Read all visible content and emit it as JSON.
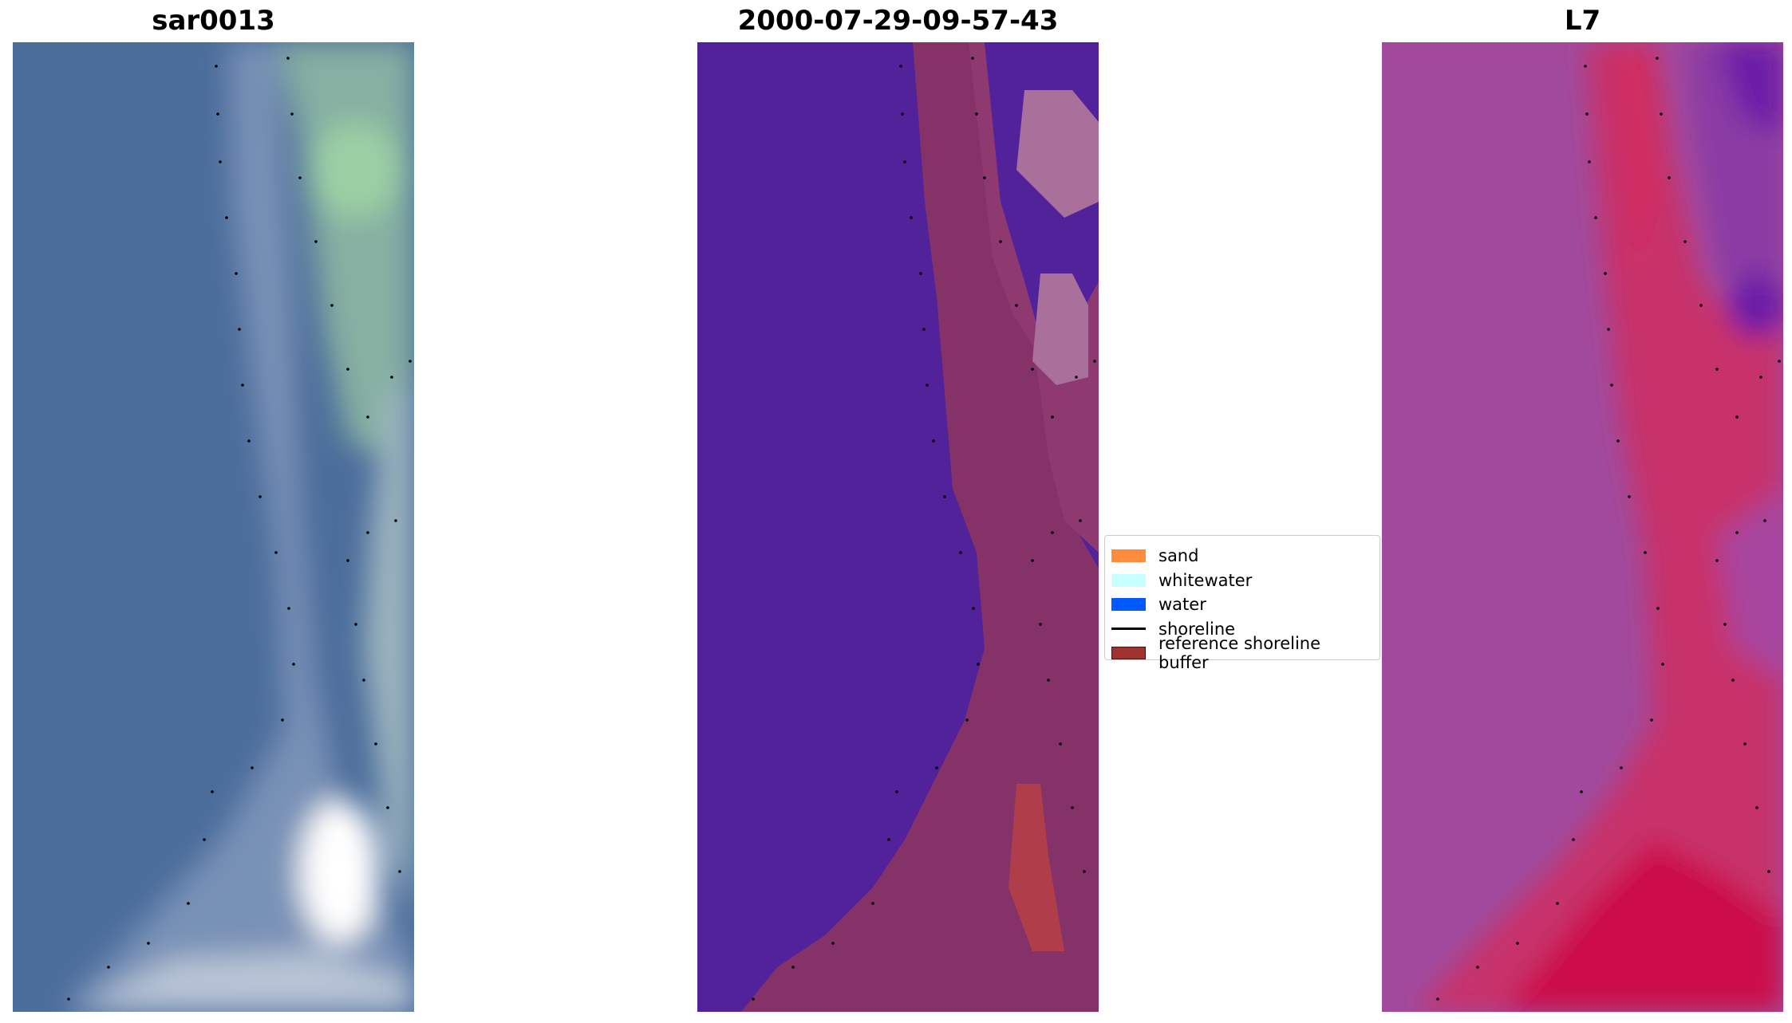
{
  "panels": [
    {
      "title": "sar0013"
    },
    {
      "title": "2000-07-29-09-57-43"
    },
    {
      "title": "L7"
    }
  ],
  "legend": {
    "items": [
      {
        "label": "sand",
        "color": "#ff8c3c"
      },
      {
        "label": "whitewater",
        "color": "#c8ffff"
      },
      {
        "label": "water",
        "color": "#005aff"
      },
      {
        "label": "shoreline",
        "color": "#000000"
      },
      {
        "label": "reference shoreline buffer",
        "color": "#a03232"
      }
    ]
  }
}
